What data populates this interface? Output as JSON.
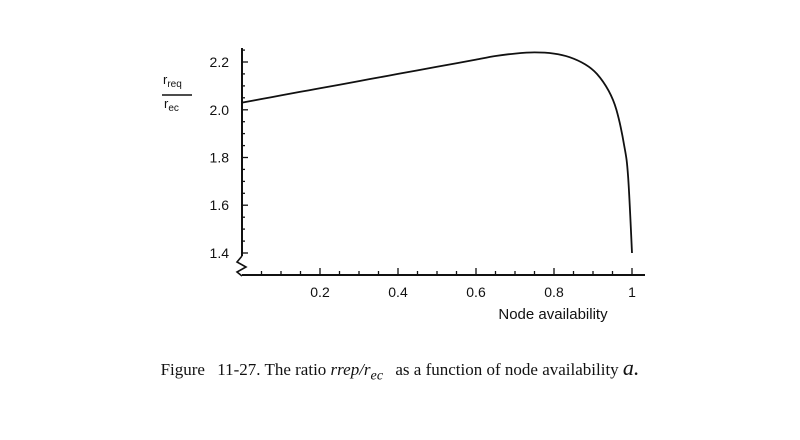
{
  "chart_data": {
    "type": "line",
    "xlabel": "Node availability",
    "ylabel": {
      "numerator": "r",
      "numerator_sub": "req",
      "denominator": "r",
      "denominator_sub": "ec"
    },
    "xlim": [
      0.0,
      1.0
    ],
    "ylim": [
      1.35,
      2.25
    ],
    "x_ticks": [
      "0.2",
      "0.4",
      "0.6",
      "0.8",
      "1"
    ],
    "y_ticks": [
      "1.4",
      "1.6",
      "1.8",
      "2.0",
      "2.2"
    ],
    "y_axis_break": true,
    "grid": false,
    "series": [
      {
        "x": [
          0.0,
          0.05,
          0.1,
          0.15,
          0.2,
          0.25,
          0.3,
          0.35,
          0.4,
          0.45,
          0.5,
          0.55,
          0.6,
          0.65,
          0.7,
          0.75,
          0.8,
          0.84,
          0.88,
          0.91,
          0.94,
          0.96,
          0.98,
          0.99,
          1.0
        ],
        "y": [
          2.03,
          2.045,
          2.06,
          2.075,
          2.09,
          2.105,
          2.12,
          2.135,
          2.15,
          2.165,
          2.18,
          2.195,
          2.21,
          2.225,
          2.235,
          2.24,
          2.235,
          2.22,
          2.19,
          2.15,
          2.08,
          2.0,
          1.85,
          1.72,
          1.4
        ]
      }
    ]
  },
  "caption": {
    "prefix": "Figure",
    "number": "11-27.",
    "text1": "The ratio",
    "ratio_italic": "rrep/r",
    "ratio_sub": "ec",
    "text2": "as a function",
    "text3": "of node availability",
    "symbol": "a."
  }
}
